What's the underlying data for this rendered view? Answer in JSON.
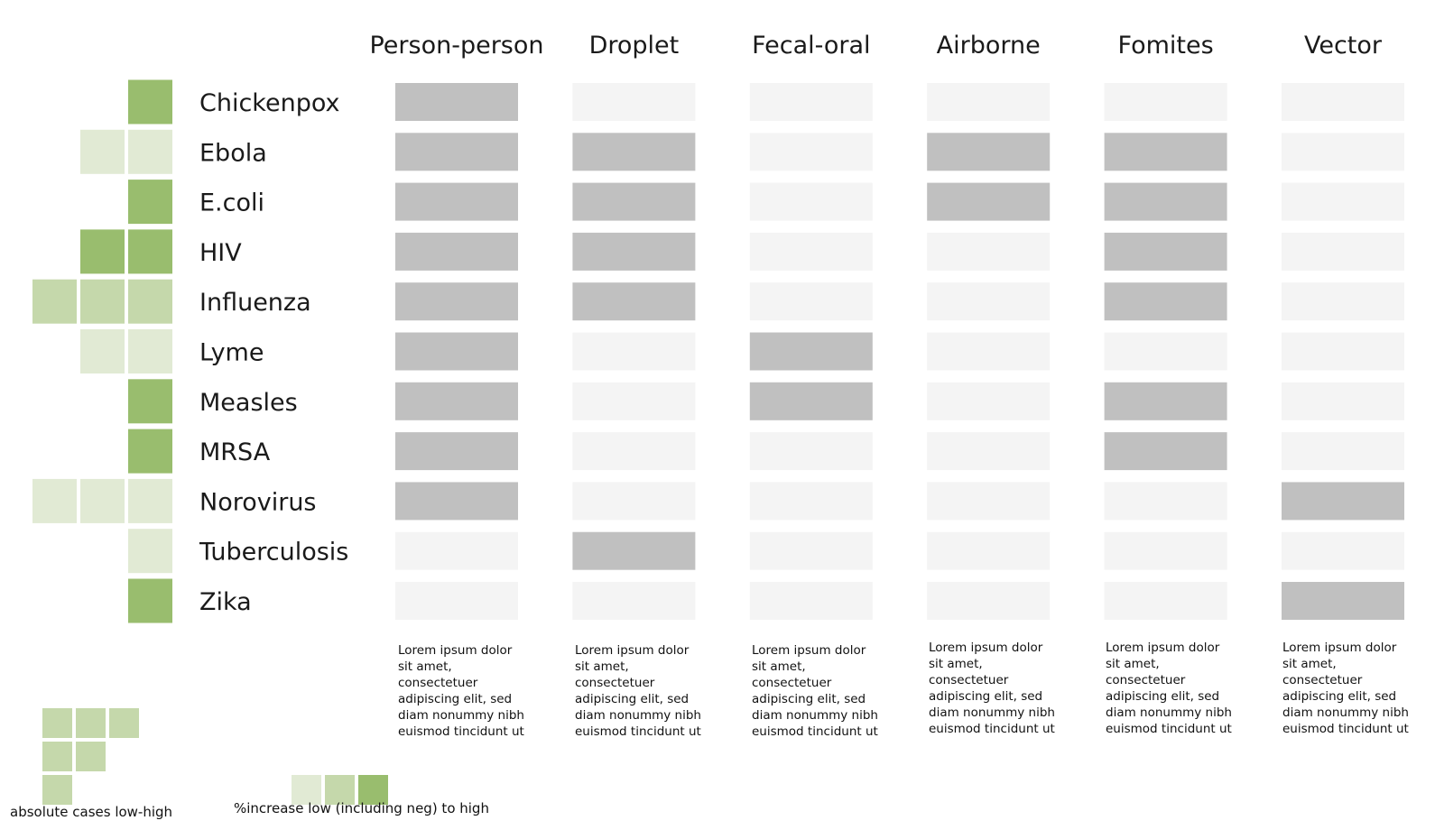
{
  "chart_data": {
    "type": "heatmap",
    "columns": [
      "Person-person",
      "Droplet",
      "Fecal-oral",
      "Airborne",
      "Fomites",
      "Vector"
    ],
    "rows": [
      "Chickenpox",
      "Ebola",
      "E.coli",
      "HIV",
      "Influenza",
      "Lyme",
      "Measles",
      "MRSA",
      "Norovirus",
      "Tuberculosis",
      "Zika"
    ],
    "matrix": [
      [
        1,
        0,
        0,
        0,
        0,
        0
      ],
      [
        1,
        1,
        0,
        1,
        1,
        0
      ],
      [
        1,
        1,
        0,
        1,
        1,
        0
      ],
      [
        1,
        1,
        0,
        0,
        1,
        0
      ],
      [
        1,
        1,
        0,
        0,
        1,
        0
      ],
      [
        1,
        0,
        1,
        0,
        0,
        0
      ],
      [
        1,
        0,
        1,
        0,
        1,
        0
      ],
      [
        1,
        0,
        0,
        0,
        1,
        0
      ],
      [
        1,
        0,
        0,
        0,
        0,
        1
      ],
      [
        0,
        1,
        0,
        0,
        0,
        0
      ],
      [
        0,
        0,
        0,
        0,
        0,
        1
      ]
    ],
    "absolute_cases_level": [
      1,
      2,
      1,
      2,
      3,
      2,
      1,
      1,
      3,
      1,
      1
    ],
    "percent_increase_level": [
      3,
      1,
      3,
      3,
      2,
      1,
      3,
      3,
      1,
      1,
      3
    ],
    "colors": {
      "present": "#c0c0c0",
      "absent": "#f4f4f4",
      "increase_low": "#e1ead4",
      "increase_mid": "#c5d8ab",
      "increase_high": "#99bd6e"
    }
  },
  "descriptions": [
    "Lorem ipsum dolor sit amet, consectetuer adipiscing elit, sed diam nonummy nibh euismod tincidunt ut",
    "Lorem ipsum dolor sit amet, consectetuer adipiscing elit, sed diam nonummy nibh euismod tincidunt ut",
    "Lorem ipsum dolor sit amet, consectetuer adipiscing elit, sed diam nonummy nibh euismod tincidunt ut",
    "Lorem ipsum dolor sit amet, consectetuer adipiscing elit, sed diam nonummy nibh euismod tincidunt ut",
    "Lorem ipsum dolor sit amet, consectetuer adipiscing elit, sed diam nonummy nibh euismod tincidunt ut",
    "Lorem ipsum dolor sit amet, consectetuer adipiscing elit, sed diam nonummy nibh euismod tincidunt ut"
  ],
  "legend": {
    "absolute_label": "absolute cases low-high",
    "increase_label": "%increase low (including neg) to high"
  }
}
